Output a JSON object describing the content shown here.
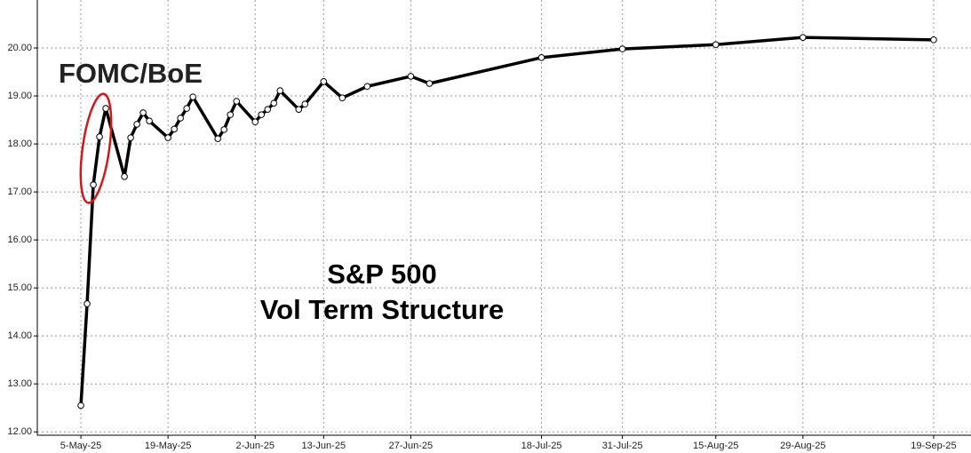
{
  "chart_data": {
    "type": "line",
    "title": "S&P 500",
    "subtitle": "Vol Term Structure",
    "annotation": "FOMC/BoE",
    "annotation_color": "#d0191b",
    "color": "#000000",
    "x": [
      "2025-05-05",
      "2025-05-06",
      "2025-05-07",
      "2025-05-08",
      "2025-05-09",
      "2025-05-12",
      "2025-05-13",
      "2025-05-14",
      "2025-05-15",
      "2025-05-16",
      "2025-05-19",
      "2025-05-20",
      "2025-05-21",
      "2025-05-22",
      "2025-05-23",
      "2025-05-27",
      "2025-05-28",
      "2025-05-29",
      "2025-05-30",
      "2025-06-02",
      "2025-06-03",
      "2025-06-04",
      "2025-06-05",
      "2025-06-06",
      "2025-06-09",
      "2025-06-10",
      "2025-06-13",
      "2025-06-16",
      "2025-06-20",
      "2025-06-27",
      "2025-06-30",
      "2025-07-18",
      "2025-07-31",
      "2025-08-15",
      "2025-08-29",
      "2025-09-19"
    ],
    "values": [
      12.55,
      14.67,
      17.15,
      18.15,
      18.74,
      17.32,
      18.13,
      18.41,
      18.65,
      18.48,
      18.13,
      18.31,
      18.54,
      18.74,
      18.98,
      18.11,
      18.3,
      18.61,
      18.89,
      18.46,
      18.61,
      18.72,
      18.85,
      19.11,
      18.72,
      18.83,
      19.3,
      18.96,
      19.2,
      19.41,
      19.26,
      19.8,
      19.98,
      20.07,
      20.22,
      20.17
    ],
    "xlim": [
      "2025-04-28",
      "2025-09-25"
    ],
    "xticks": [
      {
        "value": "2025-05-05",
        "label": "5-May-25"
      },
      {
        "value": "2025-05-19",
        "label": "19-May-25"
      },
      {
        "value": "2025-06-02",
        "label": "2-Jun-25"
      },
      {
        "value": "2025-06-13",
        "label": "13-Jun-25"
      },
      {
        "value": "2025-06-27",
        "label": "27-Jun-25"
      },
      {
        "value": "2025-07-18",
        "label": "18-Jul-25"
      },
      {
        "value": "2025-07-31",
        "label": "31-Jul-25"
      },
      {
        "value": "2025-08-15",
        "label": "15-Aug-25"
      },
      {
        "value": "2025-08-29",
        "label": "29-Aug-25"
      },
      {
        "value": "2025-09-19",
        "label": "19-Sep-25"
      }
    ],
    "ylim": [
      11.93,
      21.0
    ],
    "yticks": [
      {
        "value": 12,
        "label": "12.00"
      },
      {
        "value": 13,
        "label": "13.00"
      },
      {
        "value": 14,
        "label": "14.00"
      },
      {
        "value": 15,
        "label": "15.00"
      },
      {
        "value": 16,
        "label": "16.00"
      },
      {
        "value": 17,
        "label": "17.00"
      },
      {
        "value": 18,
        "label": "18.00"
      },
      {
        "value": 19,
        "label": "19.00"
      },
      {
        "value": 20,
        "label": "20.00"
      }
    ],
    "grid": true
  }
}
